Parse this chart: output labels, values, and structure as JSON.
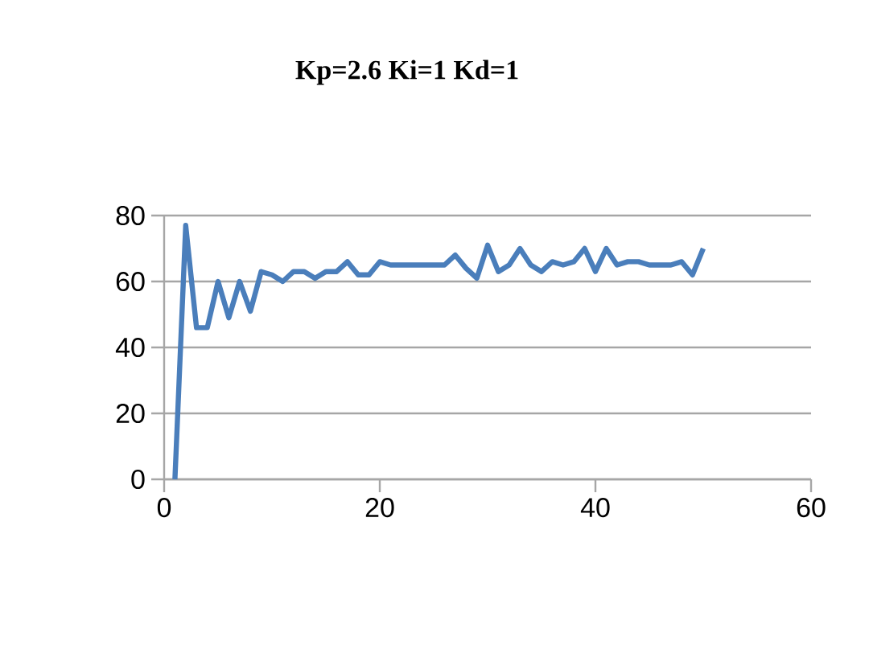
{
  "chart_data": {
    "type": "line",
    "title": "Kp=2.6 Ki=1 Kd=1",
    "x": [
      1,
      2,
      3,
      4,
      5,
      6,
      7,
      8,
      9,
      10,
      11,
      12,
      13,
      14,
      15,
      16,
      17,
      18,
      19,
      20,
      21,
      22,
      23,
      24,
      25,
      26,
      27,
      28,
      29,
      30,
      31,
      32,
      33,
      34,
      35,
      36,
      37,
      38,
      39,
      40,
      41,
      42,
      43,
      44,
      45,
      46,
      47,
      48,
      49,
      50
    ],
    "series": [
      {
        "color": "#4a7ebb",
        "values": [
          0,
          77,
          46,
          46,
          60,
          49,
          60,
          51,
          63,
          62,
          60,
          63,
          63,
          61,
          63,
          63,
          66,
          62,
          62,
          66,
          65,
          65,
          65,
          65,
          65,
          65,
          68,
          64,
          61,
          71,
          63,
          65,
          70,
          65,
          63,
          66,
          65,
          66,
          70,
          63,
          70,
          65,
          66,
          66,
          65,
          65,
          65,
          66,
          62,
          70
        ]
      }
    ],
    "xlim": [
      0,
      60
    ],
    "xticks": [
      0,
      20,
      40,
      60
    ],
    "ylim": [
      0,
      80
    ],
    "yticks": [
      0,
      20,
      40,
      60,
      80
    ],
    "grid": "y",
    "marker": "none",
    "line_style": "solid"
  }
}
